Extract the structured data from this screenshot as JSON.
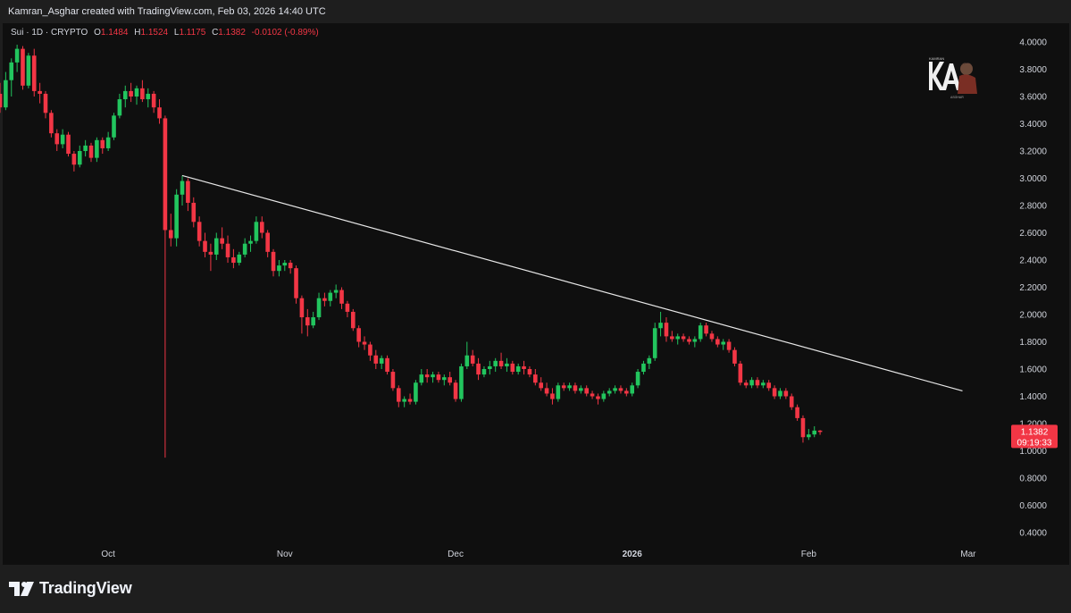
{
  "header": {
    "credit": "Kamran_Asghar created with TradingView.com, Feb 03, 2026 14:40 UTC"
  },
  "legend": {
    "symbol": "Sui · 1D · CRYPTO",
    "o_label": "O",
    "o_value": "1.1484",
    "h_label": "H",
    "h_value": "1.1524",
    "l_label": "L",
    "l_value": "1.1175",
    "c_label": "C",
    "c_value": "1.1382",
    "change": "-0.0102 (-0.89%)"
  },
  "price_tag": {
    "price": "1.1382",
    "countdown": "09:19:33",
    "color": "#f23645"
  },
  "footer": {
    "brand": "TradingView"
  },
  "colors": {
    "up": "#089981",
    "up_bright": "#22c55e",
    "down": "#f23645",
    "background": "#0f0f0f",
    "trendline": "#e8e8e8"
  },
  "chart_data": {
    "type": "candlestick",
    "yaxis_ticks": [
      "4.0000",
      "3.8000",
      "3.6000",
      "3.4000",
      "3.2000",
      "3.0000",
      "2.8000",
      "2.6000",
      "2.4000",
      "2.2000",
      "2.0000",
      "1.8000",
      "1.6000",
      "1.4000",
      "1.2000",
      "1.0000",
      "0.8000",
      "0.6000",
      "0.4000"
    ],
    "ylim": [
      0.3,
      4.1
    ],
    "xaxis_ticks": [
      "Oct",
      "Nov",
      "Dec",
      "2026",
      "Feb",
      "Mar"
    ],
    "x_range": [
      "2025-09-12",
      "2026-03-12"
    ],
    "grid": false,
    "candles": [
      {
        "d": "2025-09-12",
        "o": 3.62,
        "h": 3.7,
        "l": 3.48,
        "c": 3.52
      },
      {
        "d": "2025-09-13",
        "o": 3.52,
        "h": 3.78,
        "l": 3.5,
        "c": 3.72
      },
      {
        "d": "2025-09-14",
        "o": 3.72,
        "h": 3.88,
        "l": 3.6,
        "c": 3.85
      },
      {
        "d": "2025-09-15",
        "o": 3.85,
        "h": 3.98,
        "l": 3.78,
        "c": 3.95
      },
      {
        "d": "2025-09-16",
        "o": 3.95,
        "h": 3.97,
        "l": 3.65,
        "c": 3.68
      },
      {
        "d": "2025-09-17",
        "o": 3.68,
        "h": 3.92,
        "l": 3.66,
        "c": 3.9
      },
      {
        "d": "2025-09-18",
        "o": 3.9,
        "h": 3.95,
        "l": 3.6,
        "c": 3.64
      },
      {
        "d": "2025-09-19",
        "o": 3.64,
        "h": 3.7,
        "l": 3.55,
        "c": 3.62
      },
      {
        "d": "2025-09-20",
        "o": 3.62,
        "h": 3.64,
        "l": 3.44,
        "c": 3.48
      },
      {
        "d": "2025-09-21",
        "o": 3.48,
        "h": 3.5,
        "l": 3.3,
        "c": 3.33
      },
      {
        "d": "2025-09-22",
        "o": 3.33,
        "h": 3.36,
        "l": 3.2,
        "c": 3.25
      },
      {
        "d": "2025-09-23",
        "o": 3.25,
        "h": 3.36,
        "l": 3.22,
        "c": 3.32
      },
      {
        "d": "2025-09-24",
        "o": 3.32,
        "h": 3.34,
        "l": 3.16,
        "c": 3.18
      },
      {
        "d": "2025-09-25",
        "o": 3.18,
        "h": 3.2,
        "l": 3.05,
        "c": 3.1
      },
      {
        "d": "2025-09-26",
        "o": 3.1,
        "h": 3.24,
        "l": 3.08,
        "c": 3.2
      },
      {
        "d": "2025-09-27",
        "o": 3.2,
        "h": 3.28,
        "l": 3.16,
        "c": 3.24
      },
      {
        "d": "2025-09-28",
        "o": 3.24,
        "h": 3.26,
        "l": 3.12,
        "c": 3.15
      },
      {
        "d": "2025-09-29",
        "o": 3.15,
        "h": 3.3,
        "l": 3.12,
        "c": 3.28
      },
      {
        "d": "2025-09-30",
        "o": 3.28,
        "h": 3.3,
        "l": 3.18,
        "c": 3.22
      },
      {
        "d": "2025-10-01",
        "o": 3.22,
        "h": 3.34,
        "l": 3.2,
        "c": 3.3
      },
      {
        "d": "2025-10-02",
        "o": 3.3,
        "h": 3.48,
        "l": 3.28,
        "c": 3.46
      },
      {
        "d": "2025-10-03",
        "o": 3.46,
        "h": 3.62,
        "l": 3.44,
        "c": 3.58
      },
      {
        "d": "2025-10-04",
        "o": 3.58,
        "h": 3.68,
        "l": 3.52,
        "c": 3.64
      },
      {
        "d": "2025-10-05",
        "o": 3.64,
        "h": 3.7,
        "l": 3.56,
        "c": 3.6
      },
      {
        "d": "2025-10-06",
        "o": 3.6,
        "h": 3.68,
        "l": 3.54,
        "c": 3.66
      },
      {
        "d": "2025-10-07",
        "o": 3.66,
        "h": 3.72,
        "l": 3.56,
        "c": 3.58
      },
      {
        "d": "2025-10-08",
        "o": 3.58,
        "h": 3.66,
        "l": 3.52,
        "c": 3.62
      },
      {
        "d": "2025-10-09",
        "o": 3.62,
        "h": 3.64,
        "l": 3.48,
        "c": 3.52
      },
      {
        "d": "2025-10-10",
        "o": 3.52,
        "h": 3.58,
        "l": 3.4,
        "c": 3.44
      },
      {
        "d": "2025-10-11",
        "o": 3.44,
        "h": 3.46,
        "l": 0.95,
        "c": 2.62
      },
      {
        "d": "2025-10-12",
        "o": 2.62,
        "h": 2.74,
        "l": 2.5,
        "c": 2.56
      },
      {
        "d": "2025-10-13",
        "o": 2.56,
        "h": 2.92,
        "l": 2.5,
        "c": 2.88
      },
      {
        "d": "2025-10-14",
        "o": 2.88,
        "h": 3.02,
        "l": 2.8,
        "c": 2.98
      },
      {
        "d": "2025-10-15",
        "o": 2.98,
        "h": 3.0,
        "l": 2.76,
        "c": 2.82
      },
      {
        "d": "2025-10-16",
        "o": 2.82,
        "h": 2.86,
        "l": 2.64,
        "c": 2.68
      },
      {
        "d": "2025-10-17",
        "o": 2.68,
        "h": 2.72,
        "l": 2.5,
        "c": 2.54
      },
      {
        "d": "2025-10-18",
        "o": 2.54,
        "h": 2.6,
        "l": 2.42,
        "c": 2.46
      },
      {
        "d": "2025-10-19",
        "o": 2.46,
        "h": 2.52,
        "l": 2.32,
        "c": 2.44
      },
      {
        "d": "2025-10-20",
        "o": 2.44,
        "h": 2.6,
        "l": 2.4,
        "c": 2.56
      },
      {
        "d": "2025-10-21",
        "o": 2.56,
        "h": 2.64,
        "l": 2.48,
        "c": 2.52
      },
      {
        "d": "2025-10-22",
        "o": 2.52,
        "h": 2.58,
        "l": 2.38,
        "c": 2.42
      },
      {
        "d": "2025-10-23",
        "o": 2.42,
        "h": 2.48,
        "l": 2.34,
        "c": 2.38
      },
      {
        "d": "2025-10-24",
        "o": 2.38,
        "h": 2.46,
        "l": 2.36,
        "c": 2.44
      },
      {
        "d": "2025-10-25",
        "o": 2.44,
        "h": 2.56,
        "l": 2.42,
        "c": 2.52
      },
      {
        "d": "2025-10-26",
        "o": 2.52,
        "h": 2.58,
        "l": 2.46,
        "c": 2.54
      },
      {
        "d": "2025-10-27",
        "o": 2.54,
        "h": 2.72,
        "l": 2.52,
        "c": 2.68
      },
      {
        "d": "2025-10-28",
        "o": 2.68,
        "h": 2.72,
        "l": 2.56,
        "c": 2.6
      },
      {
        "d": "2025-10-29",
        "o": 2.6,
        "h": 2.62,
        "l": 2.42,
        "c": 2.46
      },
      {
        "d": "2025-10-30",
        "o": 2.46,
        "h": 2.48,
        "l": 2.28,
        "c": 2.32
      },
      {
        "d": "2025-10-31",
        "o": 2.32,
        "h": 2.4,
        "l": 2.28,
        "c": 2.36
      },
      {
        "d": "2025-11-01",
        "o": 2.36,
        "h": 2.4,
        "l": 2.32,
        "c": 2.38
      },
      {
        "d": "2025-11-02",
        "o": 2.38,
        "h": 2.4,
        "l": 2.3,
        "c": 2.34
      },
      {
        "d": "2025-11-03",
        "o": 2.34,
        "h": 2.36,
        "l": 2.08,
        "c": 2.12
      },
      {
        "d": "2025-11-04",
        "o": 2.12,
        "h": 2.14,
        "l": 1.86,
        "c": 1.98
      },
      {
        "d": "2025-11-05",
        "o": 1.98,
        "h": 2.04,
        "l": 1.84,
        "c": 1.92
      },
      {
        "d": "2025-11-06",
        "o": 1.92,
        "h": 2.02,
        "l": 1.9,
        "c": 1.98
      },
      {
        "d": "2025-11-07",
        "o": 1.98,
        "h": 2.16,
        "l": 1.96,
        "c": 2.12
      },
      {
        "d": "2025-11-08",
        "o": 2.12,
        "h": 2.16,
        "l": 2.06,
        "c": 2.1
      },
      {
        "d": "2025-11-09",
        "o": 2.1,
        "h": 2.18,
        "l": 2.06,
        "c": 2.16
      },
      {
        "d": "2025-11-10",
        "o": 2.16,
        "h": 2.22,
        "l": 2.12,
        "c": 2.18
      },
      {
        "d": "2025-11-11",
        "o": 2.18,
        "h": 2.2,
        "l": 2.04,
        "c": 2.08
      },
      {
        "d": "2025-11-12",
        "o": 2.08,
        "h": 2.1,
        "l": 1.98,
        "c": 2.02
      },
      {
        "d": "2025-11-13",
        "o": 2.02,
        "h": 2.04,
        "l": 1.88,
        "c": 1.9
      },
      {
        "d": "2025-11-14",
        "o": 1.9,
        "h": 1.92,
        "l": 1.76,
        "c": 1.8
      },
      {
        "d": "2025-11-15",
        "o": 1.8,
        "h": 1.84,
        "l": 1.74,
        "c": 1.78
      },
      {
        "d": "2025-11-16",
        "o": 1.78,
        "h": 1.8,
        "l": 1.66,
        "c": 1.7
      },
      {
        "d": "2025-11-17",
        "o": 1.7,
        "h": 1.74,
        "l": 1.6,
        "c": 1.64
      },
      {
        "d": "2025-11-18",
        "o": 1.64,
        "h": 1.7,
        "l": 1.6,
        "c": 1.68
      },
      {
        "d": "2025-11-19",
        "o": 1.68,
        "h": 1.7,
        "l": 1.56,
        "c": 1.58
      },
      {
        "d": "2025-11-20",
        "o": 1.58,
        "h": 1.6,
        "l": 1.44,
        "c": 1.46
      },
      {
        "d": "2025-11-21",
        "o": 1.46,
        "h": 1.48,
        "l": 1.32,
        "c": 1.36
      },
      {
        "d": "2025-11-22",
        "o": 1.36,
        "h": 1.4,
        "l": 1.32,
        "c": 1.38
      },
      {
        "d": "2025-11-23",
        "o": 1.38,
        "h": 1.42,
        "l": 1.34,
        "c": 1.36
      },
      {
        "d": "2025-11-24",
        "o": 1.36,
        "h": 1.52,
        "l": 1.34,
        "c": 1.5
      },
      {
        "d": "2025-11-25",
        "o": 1.5,
        "h": 1.6,
        "l": 1.48,
        "c": 1.56
      },
      {
        "d": "2025-11-26",
        "o": 1.56,
        "h": 1.6,
        "l": 1.5,
        "c": 1.54
      },
      {
        "d": "2025-11-27",
        "o": 1.54,
        "h": 1.58,
        "l": 1.5,
        "c": 1.56
      },
      {
        "d": "2025-11-28",
        "o": 1.56,
        "h": 1.58,
        "l": 1.5,
        "c": 1.52
      },
      {
        "d": "2025-11-29",
        "o": 1.52,
        "h": 1.56,
        "l": 1.48,
        "c": 1.54
      },
      {
        "d": "2025-11-30",
        "o": 1.54,
        "h": 1.58,
        "l": 1.48,
        "c": 1.5
      },
      {
        "d": "2025-12-01",
        "o": 1.5,
        "h": 1.52,
        "l": 1.36,
        "c": 1.38
      },
      {
        "d": "2025-12-02",
        "o": 1.38,
        "h": 1.64,
        "l": 1.36,
        "c": 1.62
      },
      {
        "d": "2025-12-03",
        "o": 1.62,
        "h": 1.8,
        "l": 1.6,
        "c": 1.7
      },
      {
        "d": "2025-12-04",
        "o": 1.7,
        "h": 1.74,
        "l": 1.62,
        "c": 1.64
      },
      {
        "d": "2025-12-05",
        "o": 1.64,
        "h": 1.68,
        "l": 1.52,
        "c": 1.56
      },
      {
        "d": "2025-12-06",
        "o": 1.56,
        "h": 1.62,
        "l": 1.54,
        "c": 1.6
      },
      {
        "d": "2025-12-07",
        "o": 1.6,
        "h": 1.66,
        "l": 1.56,
        "c": 1.62
      },
      {
        "d": "2025-12-08",
        "o": 1.62,
        "h": 1.68,
        "l": 1.58,
        "c": 1.66
      },
      {
        "d": "2025-12-09",
        "o": 1.66,
        "h": 1.72,
        "l": 1.6,
        "c": 1.62
      },
      {
        "d": "2025-12-10",
        "o": 1.62,
        "h": 1.68,
        "l": 1.58,
        "c": 1.64
      },
      {
        "d": "2025-12-11",
        "o": 1.64,
        "h": 1.66,
        "l": 1.56,
        "c": 1.58
      },
      {
        "d": "2025-12-12",
        "o": 1.58,
        "h": 1.64,
        "l": 1.56,
        "c": 1.62
      },
      {
        "d": "2025-12-13",
        "o": 1.62,
        "h": 1.66,
        "l": 1.56,
        "c": 1.6
      },
      {
        "d": "2025-12-14",
        "o": 1.6,
        "h": 1.62,
        "l": 1.54,
        "c": 1.56
      },
      {
        "d": "2025-12-15",
        "o": 1.56,
        "h": 1.6,
        "l": 1.48,
        "c": 1.5
      },
      {
        "d": "2025-12-16",
        "o": 1.5,
        "h": 1.54,
        "l": 1.44,
        "c": 1.46
      },
      {
        "d": "2025-12-17",
        "o": 1.46,
        "h": 1.5,
        "l": 1.4,
        "c": 1.42
      },
      {
        "d": "2025-12-18",
        "o": 1.42,
        "h": 1.46,
        "l": 1.34,
        "c": 1.38
      },
      {
        "d": "2025-12-19",
        "o": 1.38,
        "h": 1.5,
        "l": 1.36,
        "c": 1.48
      },
      {
        "d": "2025-12-20",
        "o": 1.48,
        "h": 1.5,
        "l": 1.44,
        "c": 1.46
      },
      {
        "d": "2025-12-21",
        "o": 1.46,
        "h": 1.5,
        "l": 1.44,
        "c": 1.48
      },
      {
        "d": "2025-12-22",
        "o": 1.48,
        "h": 1.5,
        "l": 1.42,
        "c": 1.44
      },
      {
        "d": "2025-12-23",
        "o": 1.44,
        "h": 1.48,
        "l": 1.42,
        "c": 1.46
      },
      {
        "d": "2025-12-24",
        "o": 1.46,
        "h": 1.48,
        "l": 1.4,
        "c": 1.42
      },
      {
        "d": "2025-12-25",
        "o": 1.42,
        "h": 1.44,
        "l": 1.38,
        "c": 1.4
      },
      {
        "d": "2025-12-26",
        "o": 1.4,
        "h": 1.42,
        "l": 1.34,
        "c": 1.38
      },
      {
        "d": "2025-12-27",
        "o": 1.38,
        "h": 1.44,
        "l": 1.36,
        "c": 1.42
      },
      {
        "d": "2025-12-28",
        "o": 1.42,
        "h": 1.46,
        "l": 1.4,
        "c": 1.44
      },
      {
        "d": "2025-12-29",
        "o": 1.44,
        "h": 1.48,
        "l": 1.42,
        "c": 1.46
      },
      {
        "d": "2025-12-30",
        "o": 1.46,
        "h": 1.48,
        "l": 1.42,
        "c": 1.44
      },
      {
        "d": "2025-12-31",
        "o": 1.44,
        "h": 1.46,
        "l": 1.4,
        "c": 1.42
      },
      {
        "d": "2026-01-01",
        "o": 1.42,
        "h": 1.5,
        "l": 1.4,
        "c": 1.48
      },
      {
        "d": "2026-01-02",
        "o": 1.48,
        "h": 1.6,
        "l": 1.46,
        "c": 1.58
      },
      {
        "d": "2026-01-03",
        "o": 1.58,
        "h": 1.66,
        "l": 1.56,
        "c": 1.64
      },
      {
        "d": "2026-01-04",
        "o": 1.64,
        "h": 1.7,
        "l": 1.6,
        "c": 1.68
      },
      {
        "d": "2026-01-05",
        "o": 1.68,
        "h": 1.94,
        "l": 1.66,
        "c": 1.9
      },
      {
        "d": "2026-01-06",
        "o": 1.9,
        "h": 2.02,
        "l": 1.84,
        "c": 1.94
      },
      {
        "d": "2026-01-07",
        "o": 1.94,
        "h": 1.98,
        "l": 1.8,
        "c": 1.84
      },
      {
        "d": "2026-01-08",
        "o": 1.84,
        "h": 1.88,
        "l": 1.8,
        "c": 1.82
      },
      {
        "d": "2026-01-09",
        "o": 1.82,
        "h": 1.86,
        "l": 1.78,
        "c": 1.84
      },
      {
        "d": "2026-01-10",
        "o": 1.84,
        "h": 1.86,
        "l": 1.8,
        "c": 1.82
      },
      {
        "d": "2026-01-11",
        "o": 1.82,
        "h": 1.84,
        "l": 1.78,
        "c": 1.8
      },
      {
        "d": "2026-01-12",
        "o": 1.8,
        "h": 1.84,
        "l": 1.76,
        "c": 1.82
      },
      {
        "d": "2026-01-13",
        "o": 1.82,
        "h": 1.94,
        "l": 1.8,
        "c": 1.92
      },
      {
        "d": "2026-01-14",
        "o": 1.92,
        "h": 1.94,
        "l": 1.84,
        "c": 1.86
      },
      {
        "d": "2026-01-15",
        "o": 1.86,
        "h": 1.88,
        "l": 1.8,
        "c": 1.82
      },
      {
        "d": "2026-01-16",
        "o": 1.82,
        "h": 1.84,
        "l": 1.76,
        "c": 1.78
      },
      {
        "d": "2026-01-17",
        "o": 1.78,
        "h": 1.82,
        "l": 1.74,
        "c": 1.8
      },
      {
        "d": "2026-01-18",
        "o": 1.8,
        "h": 1.82,
        "l": 1.72,
        "c": 1.74
      },
      {
        "d": "2026-01-19",
        "o": 1.74,
        "h": 1.76,
        "l": 1.62,
        "c": 1.64
      },
      {
        "d": "2026-01-20",
        "o": 1.64,
        "h": 1.66,
        "l": 1.48,
        "c": 1.5
      },
      {
        "d": "2026-01-21",
        "o": 1.5,
        "h": 1.52,
        "l": 1.46,
        "c": 1.48
      },
      {
        "d": "2026-01-22",
        "o": 1.48,
        "h": 1.54,
        "l": 1.46,
        "c": 1.52
      },
      {
        "d": "2026-01-23",
        "o": 1.52,
        "h": 1.54,
        "l": 1.46,
        "c": 1.48
      },
      {
        "d": "2026-01-24",
        "o": 1.48,
        "h": 1.52,
        "l": 1.46,
        "c": 1.5
      },
      {
        "d": "2026-01-25",
        "o": 1.5,
        "h": 1.52,
        "l": 1.44,
        "c": 1.46
      },
      {
        "d": "2026-01-26",
        "o": 1.46,
        "h": 1.48,
        "l": 1.38,
        "c": 1.4
      },
      {
        "d": "2026-01-27",
        "o": 1.4,
        "h": 1.46,
        "l": 1.38,
        "c": 1.44
      },
      {
        "d": "2026-01-28",
        "o": 1.44,
        "h": 1.46,
        "l": 1.38,
        "c": 1.4
      },
      {
        "d": "2026-01-29",
        "o": 1.4,
        "h": 1.42,
        "l": 1.3,
        "c": 1.32
      },
      {
        "d": "2026-01-30",
        "o": 1.32,
        "h": 1.34,
        "l": 1.22,
        "c": 1.24
      },
      {
        "d": "2026-01-31",
        "o": 1.24,
        "h": 1.26,
        "l": 1.06,
        "c": 1.1
      },
      {
        "d": "2026-02-01",
        "o": 1.1,
        "h": 1.16,
        "l": 1.08,
        "c": 1.12
      },
      {
        "d": "2026-02-02",
        "o": 1.12,
        "h": 1.18,
        "l": 1.1,
        "c": 1.1484
      },
      {
        "d": "2026-02-03",
        "o": 1.1484,
        "h": 1.1524,
        "l": 1.1175,
        "c": 1.1382
      }
    ],
    "trendline": {
      "start": {
        "d": "2025-10-14",
        "y": 3.02
      },
      "end": {
        "d": "2026-02-28",
        "y": 1.44
      }
    }
  }
}
